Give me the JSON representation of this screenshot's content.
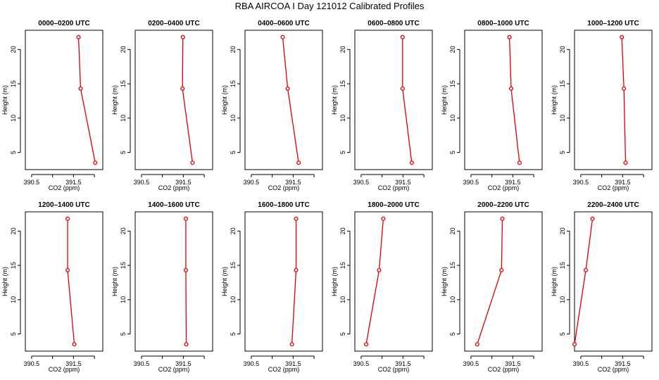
{
  "figure": {
    "title": "RBA AIRCOA I  Day 121012  Calibrated Profiles"
  },
  "chart_data": {
    "type": "line",
    "xlabel": "CO2 (ppm)",
    "ylabel": "Height (m)",
    "xlim": [
      390.35,
      392.2
    ],
    "ylim": [
      2.5,
      22.8
    ],
    "x_ticks": [
      390.5,
      391,
      391.5,
      392
    ],
    "x_tick_labels": [
      "390.5",
      "",
      "391.5",
      ""
    ],
    "y_ticks": [
      5,
      10,
      15,
      20
    ],
    "y_tick_labels": [
      "5",
      "10",
      "15",
      "20"
    ],
    "heights": [
      3.5,
      14.3,
      21.8
    ],
    "panels": [
      {
        "title": "0000–0200 UTC",
        "co2": [
          392.02,
          391.67,
          391.62
        ]
      },
      {
        "title": "0200–0400 UTC",
        "co2": [
          391.72,
          391.48,
          391.49
        ]
      },
      {
        "title": "0400–0600 UTC",
        "co2": [
          391.63,
          391.37,
          391.25
        ]
      },
      {
        "title": "0600–0800 UTC",
        "co2": [
          391.71,
          391.49,
          391.49
        ]
      },
      {
        "title": "0800–1000 UTC",
        "co2": [
          391.66,
          391.46,
          391.42
        ]
      },
      {
        "title": "1000–1200 UTC",
        "co2": [
          391.57,
          391.53,
          391.48
        ]
      },
      {
        "title": "1200–1400 UTC",
        "co2": [
          391.52,
          391.36,
          391.36
        ]
      },
      {
        "title": "1400–1600 UTC",
        "co2": [
          391.57,
          391.56,
          391.56
        ]
      },
      {
        "title": "1600–1800 UTC",
        "co2": [
          391.47,
          391.57,
          391.57
        ]
      },
      {
        "title": "1800–2000 UTC",
        "co2": [
          390.62,
          390.93,
          391.03
        ]
      },
      {
        "title": "2000–2200 UTC",
        "co2": [
          390.65,
          391.23,
          391.25
        ]
      },
      {
        "title": "2200–2400 UTC",
        "co2": [
          390.35,
          390.62,
          390.78
        ]
      }
    ]
  }
}
